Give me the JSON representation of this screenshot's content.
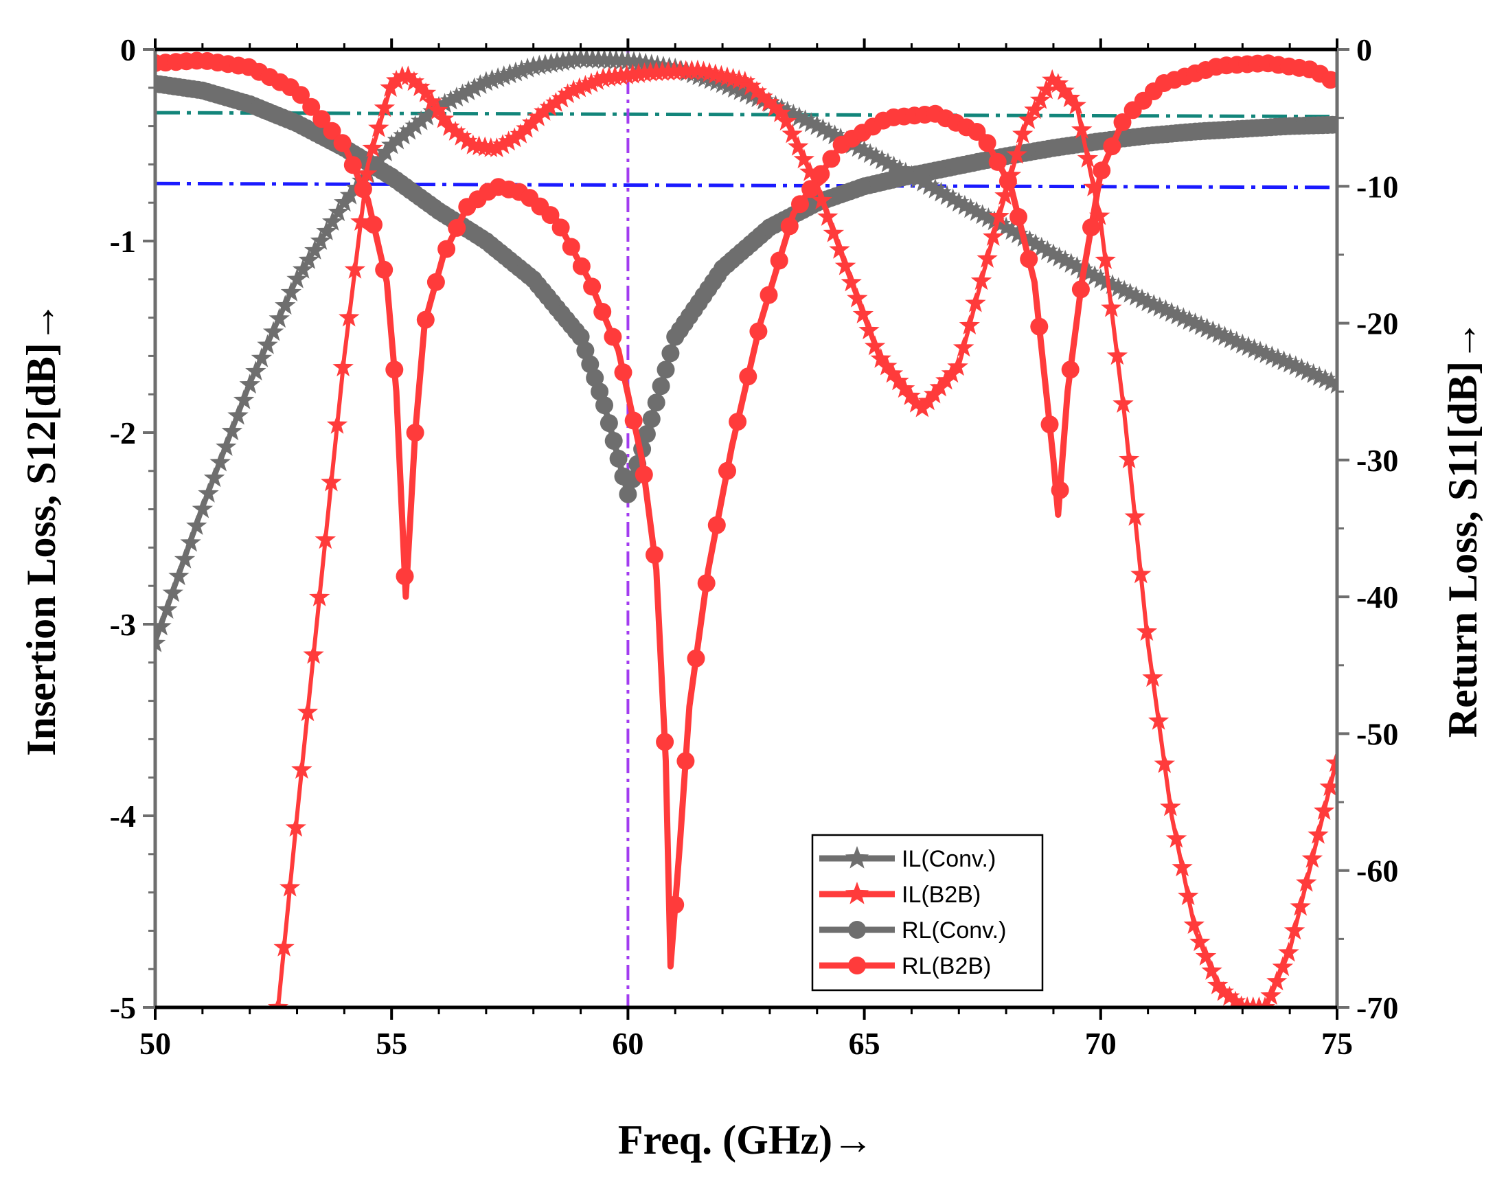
{
  "chart_data": {
    "type": "line",
    "xlabel": "Freq. (GHz)→",
    "ylabel_left": "Insertion Loss, S12[dB]→",
    "ylabel_right": "Return Loss, S11[dB]→",
    "xlim": [
      50,
      75
    ],
    "ylim_left": [
      -5,
      0
    ],
    "ylim_right": [
      -70,
      0
    ],
    "xticks": [
      "50",
      "55",
      "60",
      "65",
      "70",
      "75"
    ],
    "yticks_left": [
      "0",
      "-1",
      "-2",
      "-3",
      "-4",
      "-5"
    ],
    "yticks_right": [
      "0",
      "-10",
      "-20",
      "-30",
      "-40",
      "-50",
      "-60",
      "-70"
    ],
    "grid": false,
    "legend_position": "bottom-center",
    "colors": {
      "conv": "#6e6e6e",
      "b2b": "#ff3b3b",
      "teal_ref": "#12857a",
      "blue_ref": "#1a1aff",
      "marker_line": "#a23cf0"
    },
    "reference_lines": [
      {
        "name": "teal-reference-line",
        "axis": "left",
        "y_start": -0.33,
        "y_end": -0.35,
        "style": "dash-dot"
      },
      {
        "name": "blue-reference-line",
        "axis": "left",
        "y_start": -0.7,
        "y_end": -0.72,
        "style": "dash-dot"
      },
      {
        "name": "marker-60ghz-line",
        "axis": "x",
        "x": 60,
        "style": "dash-dot"
      }
    ],
    "series": [
      {
        "name": "IL(Conv.)",
        "axis": "left",
        "marker": "star",
        "color": "#6e6e6e",
        "points": [
          [
            50,
            -3.1
          ],
          [
            51,
            -2.4
          ],
          [
            52,
            -1.75
          ],
          [
            53,
            -1.2
          ],
          [
            54,
            -0.8
          ],
          [
            55,
            -0.5
          ],
          [
            56,
            -0.3
          ],
          [
            57,
            -0.17
          ],
          [
            58,
            -0.09
          ],
          [
            59,
            -0.05
          ],
          [
            60,
            -0.06
          ],
          [
            61,
            -0.1
          ],
          [
            62,
            -0.18
          ],
          [
            63,
            -0.28
          ],
          [
            64,
            -0.4
          ],
          [
            65,
            -0.53
          ],
          [
            66,
            -0.66
          ],
          [
            67,
            -0.8
          ],
          [
            68,
            -0.93
          ],
          [
            69,
            -1.07
          ],
          [
            70,
            -1.2
          ],
          [
            71,
            -1.32
          ],
          [
            72,
            -1.43
          ],
          [
            73,
            -1.54
          ],
          [
            74,
            -1.64
          ],
          [
            75,
            -1.75
          ]
        ]
      },
      {
        "name": "IL(B2B)",
        "axis": "left",
        "marker": "star",
        "color": "#ff3b3b",
        "points": [
          [
            52.6,
            -5.0
          ],
          [
            53,
            -4.0
          ],
          [
            53.5,
            -2.8
          ],
          [
            54,
            -1.6
          ],
          [
            54.5,
            -0.6
          ],
          [
            55,
            -0.18
          ],
          [
            55.3,
            -0.13
          ],
          [
            55.7,
            -0.22
          ],
          [
            56.2,
            -0.4
          ],
          [
            56.7,
            -0.5
          ],
          [
            57.2,
            -0.52
          ],
          [
            57.7,
            -0.45
          ],
          [
            58.2,
            -0.33
          ],
          [
            58.8,
            -0.22
          ],
          [
            59.5,
            -0.15
          ],
          [
            60.5,
            -0.12
          ],
          [
            61.5,
            -0.11
          ],
          [
            62.5,
            -0.17
          ],
          [
            63.3,
            -0.35
          ],
          [
            64,
            -0.72
          ],
          [
            64.7,
            -1.2
          ],
          [
            65.3,
            -1.6
          ],
          [
            66.2,
            -1.88
          ],
          [
            67,
            -1.65
          ],
          [
            67.7,
            -1.0
          ],
          [
            68.4,
            -0.4
          ],
          [
            69,
            -0.15
          ],
          [
            69.5,
            -0.3
          ],
          [
            70,
            -0.9
          ],
          [
            70.5,
            -1.9
          ],
          [
            71,
            -3.1
          ],
          [
            71.5,
            -4.0
          ],
          [
            72,
            -4.6
          ],
          [
            72.5,
            -4.9
          ],
          [
            73,
            -5.0
          ],
          [
            73.5,
            -5.0
          ],
          [
            74,
            -4.7
          ],
          [
            74.5,
            -4.2
          ],
          [
            75,
            -3.7
          ]
        ]
      },
      {
        "name": "RL(Conv.)",
        "axis": "right",
        "marker": "circle",
        "color": "#6e6e6e",
        "points": [
          [
            50,
            -2.5
          ],
          [
            51,
            -3.0
          ],
          [
            52,
            -4.0
          ],
          [
            53,
            -5.4
          ],
          [
            54,
            -7.2
          ],
          [
            55,
            -9.3
          ],
          [
            56,
            -11.8
          ],
          [
            57,
            -14.0
          ],
          [
            58,
            -16.8
          ],
          [
            59,
            -21.0
          ],
          [
            59.5,
            -26.0
          ],
          [
            60,
            -32.5
          ],
          [
            60.5,
            -27.0
          ],
          [
            61,
            -21.0
          ],
          [
            62,
            -16.0
          ],
          [
            63,
            -13.0
          ],
          [
            64,
            -11.2
          ],
          [
            65,
            -10.0
          ],
          [
            66,
            -9.2
          ],
          [
            67,
            -8.5
          ],
          [
            68,
            -7.8
          ],
          [
            69,
            -7.2
          ],
          [
            70,
            -6.7
          ],
          [
            71,
            -6.3
          ],
          [
            72,
            -6.0
          ],
          [
            73,
            -5.8
          ],
          [
            74,
            -5.6
          ],
          [
            75,
            -5.5
          ]
        ]
      },
      {
        "name": "RL(B2B)",
        "axis": "right",
        "marker": "circle",
        "color": "#ff3b3b",
        "points": [
          [
            50,
            -1.0
          ],
          [
            51,
            -0.8
          ],
          [
            52,
            -1.3
          ],
          [
            53,
            -3.0
          ],
          [
            54,
            -7.0
          ],
          [
            54.5,
            -11.0
          ],
          [
            54.9,
            -17.0
          ],
          [
            55.1,
            -25.0
          ],
          [
            55.3,
            -40.0
          ],
          [
            55.5,
            -28.0
          ],
          [
            55.7,
            -20.0
          ],
          [
            56.1,
            -15.0
          ],
          [
            56.6,
            -11.5
          ],
          [
            57.2,
            -10.0
          ],
          [
            57.8,
            -10.5
          ],
          [
            58.5,
            -12.5
          ],
          [
            59.2,
            -17.0
          ],
          [
            59.8,
            -22.0
          ],
          [
            60.3,
            -30.0
          ],
          [
            60.6,
            -38.0
          ],
          [
            60.8,
            -52.0
          ],
          [
            60.9,
            -67.0
          ],
          [
            61.1,
            -58.0
          ],
          [
            61.3,
            -48.0
          ],
          [
            61.7,
            -38.0
          ],
          [
            62.2,
            -29.0
          ],
          [
            62.8,
            -20.0
          ],
          [
            63.5,
            -12.0
          ],
          [
            64.5,
            -7.0
          ],
          [
            65.5,
            -5.0
          ],
          [
            66.5,
            -4.7
          ],
          [
            67.5,
            -6.2
          ],
          [
            68.1,
            -10.0
          ],
          [
            68.6,
            -17.0
          ],
          [
            69.0,
            -30.0
          ],
          [
            69.1,
            -34.0
          ],
          [
            69.3,
            -25.0
          ],
          [
            69.6,
            -17.0
          ],
          [
            70,
            -9.0
          ],
          [
            70.5,
            -5.0
          ],
          [
            71.3,
            -2.5
          ],
          [
            72.5,
            -1.2
          ],
          [
            73.5,
            -1.0
          ],
          [
            74.5,
            -1.5
          ],
          [
            75,
            -2.5
          ]
        ]
      }
    ],
    "legend": [
      {
        "label": "IL(Conv.)",
        "color": "#6e6e6e",
        "marker": "star"
      },
      {
        "label": "IL(B2B)",
        "color": "#ff3b3b",
        "marker": "star"
      },
      {
        "label": "RL(Conv.)",
        "color": "#6e6e6e",
        "marker": "circle"
      },
      {
        "label": "RL(B2B)",
        "color": "#ff3b3b",
        "marker": "circle"
      }
    ]
  }
}
